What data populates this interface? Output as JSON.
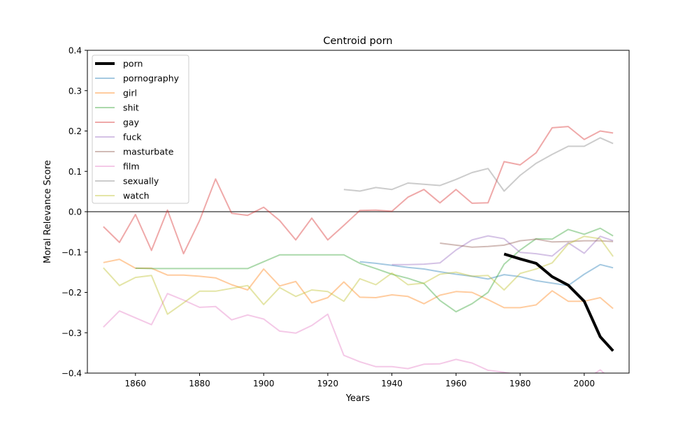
{
  "chart_data": {
    "type": "line",
    "title": "Centroid porn",
    "xlabel": "Years",
    "ylabel": "Moral Relevance Score",
    "xlim": [
      1845,
      2014
    ],
    "ylim": [
      -0.4,
      0.4
    ],
    "xticks": [
      1860,
      1880,
      1900,
      1920,
      1940,
      1960,
      1980,
      2000
    ],
    "yticks": [
      -0.4,
      -0.3,
      -0.2,
      -0.1,
      0.0,
      0.1,
      0.2,
      0.3,
      0.4
    ],
    "ytick_labels": [
      "−0.4",
      "−0.3",
      "−0.2",
      "−0.1",
      "0.0",
      "0.1",
      "0.2",
      "0.3",
      "0.4"
    ],
    "zero_line": true,
    "grid": false,
    "legend_position": "top-left",
    "series": [
      {
        "name": "porn",
        "color": "#000000",
        "emphasis": true,
        "x": [
          1975,
          1980,
          1985,
          1990,
          1995,
          2000,
          2005,
          2009
        ],
        "y": [
          -0.105,
          -0.117,
          -0.128,
          -0.161,
          -0.182,
          -0.222,
          -0.31,
          -0.345
        ]
      },
      {
        "name": "pornography",
        "color": "#1f77b4",
        "x": [
          1930,
          1935,
          1940,
          1945,
          1950,
          1955,
          1960,
          1965,
          1970,
          1975,
          1980,
          1985,
          1990,
          1995,
          2000,
          2005,
          2009
        ],
        "y": [
          -0.124,
          -0.128,
          -0.133,
          -0.138,
          -0.142,
          -0.149,
          -0.155,
          -0.16,
          -0.167,
          -0.156,
          -0.161,
          -0.171,
          -0.177,
          -0.183,
          -0.155,
          -0.131,
          -0.139
        ]
      },
      {
        "name": "girl",
        "color": "#ff7f0e",
        "x": [
          1850,
          1855,
          1860,
          1865,
          1870,
          1875,
          1880,
          1885,
          1890,
          1895,
          1900,
          1905,
          1910,
          1915,
          1920,
          1925,
          1930,
          1935,
          1940,
          1945,
          1950,
          1955,
          1960,
          1965,
          1970,
          1975,
          1980,
          1985,
          1990,
          1995,
          2000,
          2005,
          2009
        ],
        "y": [
          -0.126,
          -0.118,
          -0.14,
          -0.14,
          -0.157,
          -0.157,
          -0.16,
          -0.164,
          -0.181,
          -0.194,
          -0.142,
          -0.184,
          -0.173,
          -0.226,
          -0.213,
          -0.174,
          -0.212,
          -0.213,
          -0.206,
          -0.21,
          -0.228,
          -0.207,
          -0.198,
          -0.2,
          -0.218,
          -0.238,
          -0.238,
          -0.231,
          -0.196,
          -0.222,
          -0.222,
          -0.213,
          -0.24
        ]
      },
      {
        "name": "shit",
        "color": "#2ca02c",
        "x": [
          1860,
          1865,
          1870,
          1875,
          1880,
          1885,
          1890,
          1895,
          1900,
          1905,
          1910,
          1915,
          1920,
          1925,
          1930,
          1935,
          1940,
          1945,
          1950,
          1955,
          1960,
          1965,
          1970,
          1975,
          1980,
          1985,
          1990,
          1995,
          2000,
          2005,
          2009
        ],
        "y": [
          -0.14,
          -0.141,
          -0.141,
          -0.141,
          -0.141,
          -0.141,
          -0.141,
          -0.141,
          -0.124,
          -0.107,
          -0.107,
          -0.107,
          -0.107,
          -0.107,
          -0.128,
          -0.141,
          -0.155,
          -0.165,
          -0.178,
          -0.22,
          -0.248,
          -0.228,
          -0.2,
          -0.13,
          -0.095,
          -0.067,
          -0.068,
          -0.044,
          -0.056,
          -0.041,
          -0.06
        ]
      },
      {
        "name": "gay",
        "color": "#d62728",
        "x": [
          1850,
          1855,
          1860,
          1865,
          1870,
          1875,
          1880,
          1885,
          1890,
          1895,
          1900,
          1905,
          1910,
          1915,
          1920,
          1925,
          1930,
          1935,
          1940,
          1945,
          1950,
          1955,
          1960,
          1965,
          1970,
          1975,
          1980,
          1985,
          1990,
          1995,
          2000,
          2005,
          2009
        ],
        "y": [
          -0.037,
          -0.076,
          -0.007,
          -0.096,
          0.004,
          -0.104,
          -0.022,
          0.081,
          -0.004,
          -0.009,
          0.011,
          -0.022,
          -0.07,
          -0.016,
          -0.07,
          -0.034,
          0.003,
          0.004,
          0.001,
          0.036,
          0.055,
          0.022,
          0.055,
          0.021,
          0.022,
          0.124,
          0.116,
          0.146,
          0.208,
          0.211,
          0.179,
          0.2,
          0.195
        ]
      },
      {
        "name": "fuck",
        "color": "#9467bd",
        "x": [
          1940,
          1945,
          1950,
          1955,
          1960,
          1965,
          1970,
          1975,
          1980,
          1985,
          1990,
          1995,
          2000,
          2005,
          2009
        ],
        "y": [
          -0.131,
          -0.131,
          -0.13,
          -0.127,
          -0.095,
          -0.07,
          -0.06,
          -0.067,
          -0.101,
          -0.104,
          -0.11,
          -0.077,
          -0.103,
          -0.061,
          -0.072
        ]
      },
      {
        "name": "masturbate",
        "color": "#8c564b",
        "x": [
          1955,
          1960,
          1965,
          1970,
          1975,
          1980,
          1985,
          1990,
          1995,
          2000,
          2005,
          2009
        ],
        "y": [
          -0.078,
          -0.083,
          -0.088,
          -0.086,
          -0.083,
          -0.072,
          -0.068,
          -0.075,
          -0.074,
          -0.072,
          -0.072,
          -0.074
        ]
      },
      {
        "name": "film",
        "color": "#e377c2",
        "x": [
          1850,
          1855,
          1860,
          1865,
          1870,
          1875,
          1880,
          1885,
          1890,
          1895,
          1900,
          1905,
          1910,
          1915,
          1920,
          1925,
          1930,
          1935,
          1940,
          1945,
          1950,
          1955,
          1960,
          1965,
          1970,
          1975,
          1980,
          1985,
          1990,
          1995,
          2000,
          2005,
          2009
        ],
        "y": [
          -0.286,
          -0.246,
          -0.263,
          -0.28,
          -0.203,
          -0.219,
          -0.237,
          -0.235,
          -0.268,
          -0.256,
          -0.266,
          -0.296,
          -0.301,
          -0.282,
          -0.254,
          -0.356,
          -0.372,
          -0.384,
          -0.384,
          -0.389,
          -0.378,
          -0.377,
          -0.366,
          -0.375,
          -0.393,
          -0.398,
          -0.405,
          -0.41,
          -0.412,
          -0.415,
          -0.418,
          -0.392,
          -0.42
        ]
      },
      {
        "name": "sexually",
        "color": "#7f7f7f",
        "x": [
          1925,
          1930,
          1935,
          1940,
          1945,
          1950,
          1955,
          1960,
          1965,
          1970,
          1975,
          1980,
          1985,
          1990,
          1995,
          2000,
          2005,
          2009
        ],
        "y": [
          0.055,
          0.051,
          0.06,
          0.055,
          0.071,
          0.068,
          0.065,
          0.08,
          0.097,
          0.107,
          0.051,
          0.09,
          0.12,
          0.142,
          0.162,
          0.162,
          0.183,
          0.169
        ]
      },
      {
        "name": "watch",
        "color": "#bcbd22",
        "x": [
          1850,
          1855,
          1860,
          1865,
          1870,
          1875,
          1880,
          1885,
          1890,
          1895,
          1900,
          1905,
          1910,
          1915,
          1920,
          1925,
          1930,
          1935,
          1940,
          1945,
          1950,
          1955,
          1960,
          1965,
          1970,
          1975,
          1980,
          1985,
          1990,
          1995,
          2000,
          2005,
          2009
        ],
        "y": [
          -0.139,
          -0.183,
          -0.163,
          -0.158,
          -0.254,
          -0.226,
          -0.197,
          -0.197,
          -0.19,
          -0.183,
          -0.23,
          -0.188,
          -0.21,
          -0.194,
          -0.198,
          -0.222,
          -0.166,
          -0.181,
          -0.152,
          -0.181,
          -0.177,
          -0.155,
          -0.15,
          -0.16,
          -0.158,
          -0.194,
          -0.153,
          -0.142,
          -0.127,
          -0.08,
          -0.061,
          -0.067,
          -0.111
        ]
      }
    ]
  }
}
